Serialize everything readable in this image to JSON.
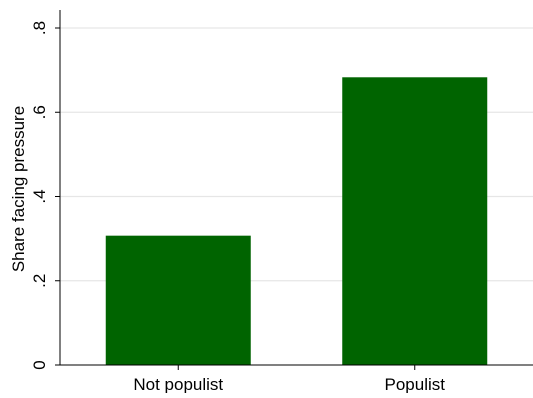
{
  "chart_data": {
    "type": "bar",
    "categories": [
      "Not populist",
      "Populist"
    ],
    "values": [
      0.307,
      0.683
    ],
    "title": "",
    "xlabel": "",
    "ylabel": "Share facing pressure",
    "ylim": [
      0,
      0.8
    ],
    "yticks": [
      0,
      0.2,
      0.4,
      0.6,
      0.8
    ],
    "ytick_labels": [
      "0",
      ".2",
      ".4",
      ".6",
      ".8"
    ],
    "grid": true,
    "legend": "none",
    "bar_color": "#006400"
  }
}
